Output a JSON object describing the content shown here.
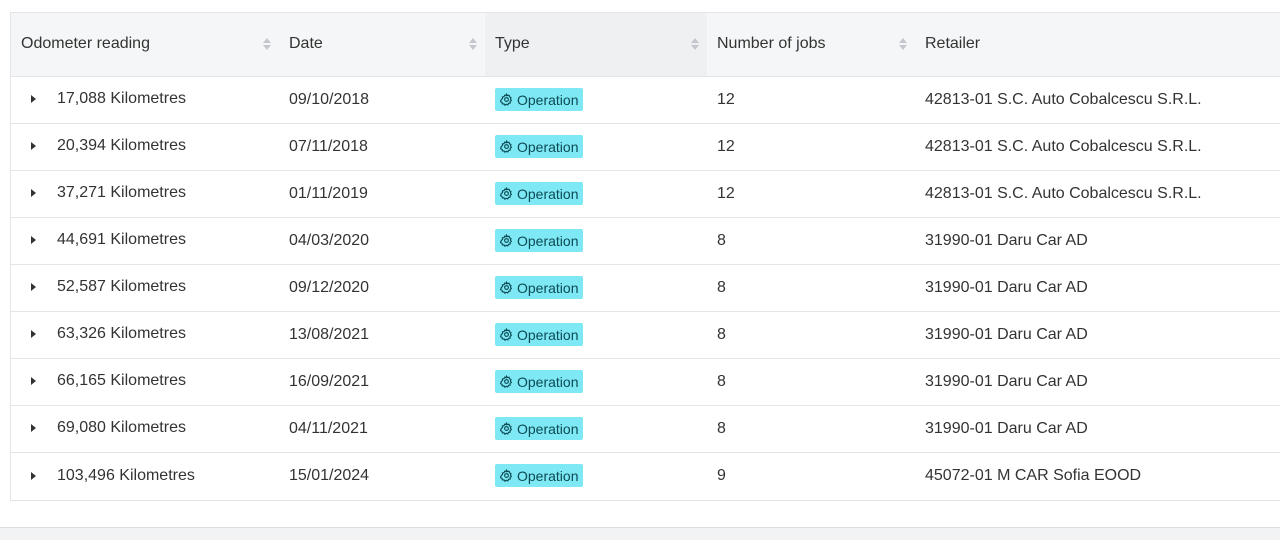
{
  "table": {
    "columns": [
      {
        "key": "odometer",
        "label": "Odometer reading"
      },
      {
        "key": "date",
        "label": "Date"
      },
      {
        "key": "type",
        "label": "Type"
      },
      {
        "key": "jobs",
        "label": "Number of jobs"
      },
      {
        "key": "retailer",
        "label": "Retailer"
      }
    ],
    "badge_icon": "gear-icon",
    "badge_color": "#7ee9f4",
    "rows": [
      {
        "odometer": "17,088 Kilometres",
        "date": "09/10/2018",
        "type": "Operation",
        "jobs": "12",
        "retailer": "42813-01 S.C. Auto Cobalcescu S.R.L."
      },
      {
        "odometer": "20,394 Kilometres",
        "date": "07/11/2018",
        "type": "Operation",
        "jobs": "12",
        "retailer": "42813-01 S.C. Auto Cobalcescu S.R.L."
      },
      {
        "odometer": "37,271 Kilometres",
        "date": "01/11/2019",
        "type": "Operation",
        "jobs": "12",
        "retailer": "42813-01 S.C. Auto Cobalcescu S.R.L."
      },
      {
        "odometer": "44,691 Kilometres",
        "date": "04/03/2020",
        "type": "Operation",
        "jobs": "8",
        "retailer": "31990-01 Daru Car AD"
      },
      {
        "odometer": "52,587 Kilometres",
        "date": "09/12/2020",
        "type": "Operation",
        "jobs": "8",
        "retailer": "31990-01 Daru Car AD"
      },
      {
        "odometer": "63,326 Kilometres",
        "date": "13/08/2021",
        "type": "Operation",
        "jobs": "8",
        "retailer": "31990-01 Daru Car AD"
      },
      {
        "odometer": "66,165 Kilometres",
        "date": "16/09/2021",
        "type": "Operation",
        "jobs": "8",
        "retailer": "31990-01 Daru Car AD"
      },
      {
        "odometer": "69,080 Kilometres",
        "date": "04/11/2021",
        "type": "Operation",
        "jobs": "8",
        "retailer": "31990-01 Daru Car AD"
      },
      {
        "odometer": "103,496 Kilometres",
        "date": "15/01/2024",
        "type": "Operation",
        "jobs": "9",
        "retailer": "45072-01 M CAR Sofia EOOD"
      }
    ]
  }
}
